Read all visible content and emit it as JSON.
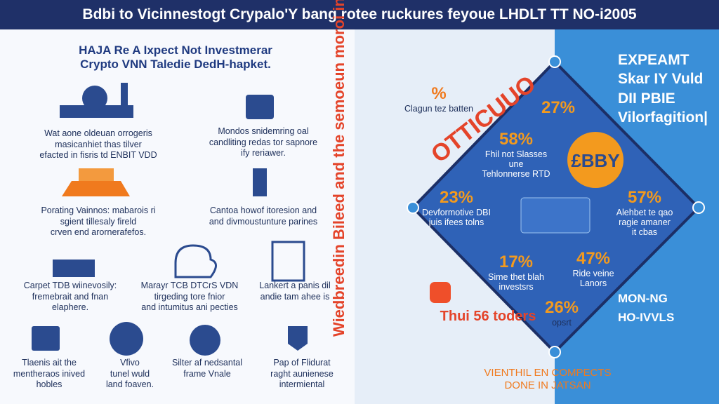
{
  "header": {
    "title": "Bdbi to Vicinnestogt Crypalo'Y bang rotee ruckures feyoue LHDLT TT NO-i2005"
  },
  "left": {
    "heading": [
      "HAJA Re A Ixpect Not Investmerar",
      "Crypto VNN Taledie DedH-hapket."
    ],
    "items": [
      [
        "Wat aone oldeuan orrogeris",
        "masicanhiet thas tilver",
        "efacted in fisris td ENBIT VDD"
      ],
      [
        "Mondos snidemring oal",
        "candliting redas tor sapnore",
        "ify reriawer."
      ],
      [
        "Porating Vainnos: mabarois ri",
        "sgient tillesaly fireld",
        "crven end arornerafefos."
      ],
      [
        "Cantoa howof itoresion and",
        "and divmoustunture parines"
      ],
      [
        "Carpet TDB wiinevosily:",
        "fremebrait and fnan",
        "elaphere."
      ],
      [
        "Marayr TCB DTCrS VDN",
        "tirgeding tore fnior",
        "and intumitus ani pecties"
      ],
      [
        "Lankert a panis dil",
        "andie tam ahee is"
      ],
      [
        "Tlaenis ait the",
        "mentheraos inived",
        "hobles"
      ],
      [
        "Vfivo",
        "tunel wuld",
        "land foaven."
      ],
      [
        "Silter af nedsantal",
        "frame Vnale"
      ],
      [
        "Pap of Flidurat",
        "raght aunienese",
        "intermiental"
      ]
    ]
  },
  "right": {
    "vertical_text": "Wiedbreedin Bileed and the semoeun moroi inspithestie",
    "arc_text": "OTTICUUO",
    "stats": [
      {
        "value": "%",
        "lines": [
          "Clagun tez batten"
        ]
      },
      {
        "value": "27%",
        "lines": []
      },
      {
        "value": "58%",
        "lines": [
          "Fhil not Slasses",
          "une",
          "Tehlonnerse RTD"
        ]
      },
      {
        "value": "£BBY",
        "lines": []
      },
      {
        "value": "23%",
        "lines": [
          "Devformotive DBI",
          "juis ifees tolns"
        ]
      },
      {
        "value": "57%",
        "lines": [
          "Alehbet te qao",
          "ragie amaner",
          "it cbas"
        ]
      },
      {
        "value": "17%",
        "lines": [
          "Sime thet blah",
          "investsrs"
        ]
      },
      {
        "value": "47%",
        "lines": [
          "Ride veine",
          "Lanors"
        ]
      },
      {
        "value": "26%",
        "lines": [
          "opsrt"
        ]
      },
      {
        "value": "Thui 56 toders",
        "lines": []
      }
    ],
    "bottom": [
      "VIENTHIL EN COMPECTS",
      "DONE IN JATSAN"
    ],
    "panel": [
      "EXPEAMT",
      "Skar IY Vuld",
      "DII PBIE",
      "Vilorfagition|"
    ],
    "panel2": [
      "MON-NG",
      "HO-IVVLS"
    ]
  }
}
